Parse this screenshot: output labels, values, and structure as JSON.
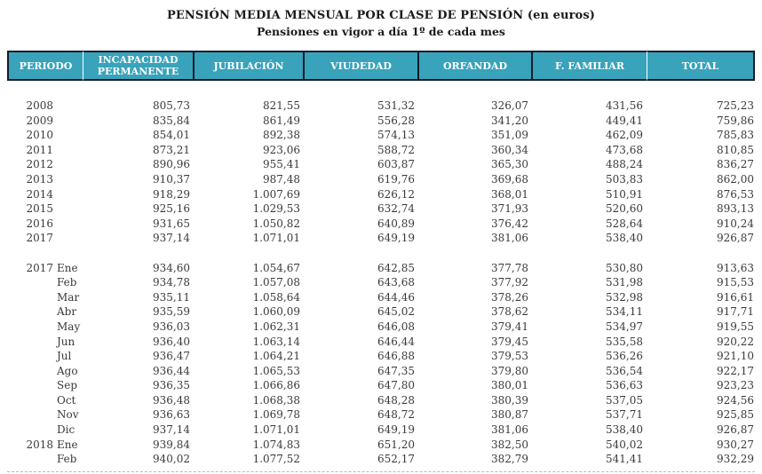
{
  "title": "PENSIÓN MEDIA MENSUAL POR CLASE DE PENSIÓN (en euros)",
  "subtitle": "Pensiones en vigor a día 1º de cada mes",
  "colors": {
    "header_bg": "#38a3bb",
    "header_border": "#101d2c",
    "header_text": "#ffffff",
    "body_text": "#3a3a3a"
  },
  "table": {
    "columns": [
      "PERIODO",
      "INCAPACIDAD PERMANENTE",
      "JUBILACIÓN",
      "VIUDEDAD",
      "ORFANDAD",
      "F. FAMILIAR",
      "TOTAL"
    ],
    "rows": [
      {
        "year": "2008",
        "month": "",
        "values": [
          "805,73",
          "821,55",
          "531,32",
          "326,07",
          "431,56",
          "725,23"
        ]
      },
      {
        "year": "2009",
        "month": "",
        "values": [
          "835,84",
          "861,49",
          "556,28",
          "341,20",
          "449,41",
          "759,86"
        ]
      },
      {
        "year": "2010",
        "month": "",
        "values": [
          "854,01",
          "892,38",
          "574,13",
          "351,09",
          "462,09",
          "785,83"
        ]
      },
      {
        "year": "2011",
        "month": "",
        "values": [
          "873,21",
          "923,06",
          "588,72",
          "360,34",
          "473,68",
          "810,85"
        ]
      },
      {
        "year": "2012",
        "month": "",
        "values": [
          "890,96",
          "955,41",
          "603,87",
          "365,30",
          "488,24",
          "836,27"
        ]
      },
      {
        "year": "2013",
        "month": "",
        "values": [
          "910,37",
          "987,48",
          "619,76",
          "369,68",
          "503,83",
          "862,00"
        ]
      },
      {
        "year": "2014",
        "month": "",
        "values": [
          "918,29",
          "1.007,69",
          "626,12",
          "368,01",
          "510,91",
          "876,53"
        ]
      },
      {
        "year": "2015",
        "month": "",
        "values": [
          "925,16",
          "1.029,53",
          "632,74",
          "371,93",
          "520,60",
          "893,13"
        ]
      },
      {
        "year": "2016",
        "month": "",
        "values": [
          "931,65",
          "1.050,82",
          "640,89",
          "376,42",
          "528,64",
          "910,24"
        ]
      },
      {
        "year": "2017",
        "month": "",
        "values": [
          "937,14",
          "1.071,01",
          "649,19",
          "381,06",
          "538,40",
          "926,87"
        ]
      },
      {
        "blank": true
      },
      {
        "year": "2017",
        "month": "Ene",
        "values": [
          "934,60",
          "1.054,67",
          "642,85",
          "377,78",
          "530,80",
          "913,63"
        ]
      },
      {
        "year": "",
        "month": "Feb",
        "values": [
          "934,78",
          "1.057,08",
          "643,68",
          "377,92",
          "531,98",
          "915,53"
        ]
      },
      {
        "year": "",
        "month": "Mar",
        "values": [
          "935,11",
          "1.058,64",
          "644,46",
          "378,26",
          "532,98",
          "916,61"
        ]
      },
      {
        "year": "",
        "month": "Abr",
        "values": [
          "935,59",
          "1.060,09",
          "645,02",
          "378,62",
          "534,11",
          "917,71"
        ]
      },
      {
        "year": "",
        "month": "May",
        "values": [
          "936,03",
          "1.062,31",
          "646,08",
          "379,41",
          "534,97",
          "919,55"
        ]
      },
      {
        "year": "",
        "month": "Jun",
        "values": [
          "936,40",
          "1.063,14",
          "646,44",
          "379,45",
          "535,58",
          "920,22"
        ]
      },
      {
        "year": "",
        "month": "Jul",
        "values": [
          "936,47",
          "1.064,21",
          "646,88",
          "379,53",
          "536,26",
          "921,10"
        ]
      },
      {
        "year": "",
        "month": "Ago",
        "values": [
          "936,44",
          "1.065,53",
          "647,35",
          "379,80",
          "536,54",
          "922,17"
        ]
      },
      {
        "year": "",
        "month": "Sep",
        "values": [
          "936,35",
          "1.066,86",
          "647,80",
          "380,01",
          "536,63",
          "923,23"
        ]
      },
      {
        "year": "",
        "month": "Oct",
        "values": [
          "936,48",
          "1.068,38",
          "648,28",
          "380,39",
          "537,05",
          "924,56"
        ]
      },
      {
        "year": "",
        "month": "Nov",
        "values": [
          "936,63",
          "1.069,78",
          "648,72",
          "380,87",
          "537,71",
          "925,85"
        ]
      },
      {
        "year": "",
        "month": "Dic",
        "values": [
          "937,14",
          "1.071,01",
          "649,19",
          "381,06",
          "538,40",
          "926,87"
        ]
      },
      {
        "year": "2018",
        "month": "Ene",
        "values": [
          "939,84",
          "1.074,83",
          "651,20",
          "382,50",
          "540,02",
          "930,27"
        ]
      },
      {
        "year": "",
        "month": "Feb",
        "values": [
          "940,02",
          "1.077,52",
          "652,17",
          "382,79",
          "541,41",
          "932,29"
        ]
      }
    ]
  }
}
